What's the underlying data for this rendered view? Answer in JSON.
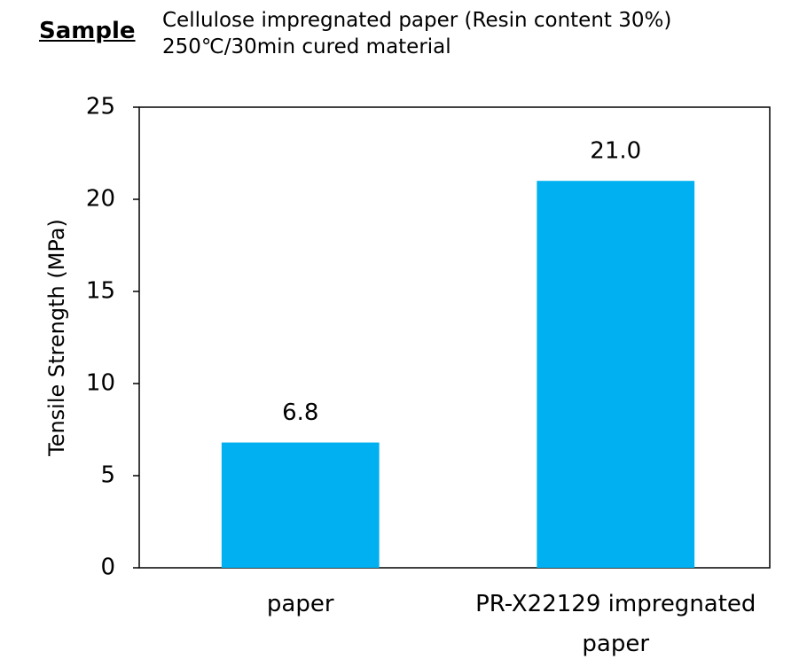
{
  "header": {
    "label": "Sample",
    "lines": [
      "Cellulose impregnated paper (Resin content 30%)",
      "250℃/30min cured material"
    ]
  },
  "chart_data": {
    "type": "bar",
    "ylabel": "Tensile Strength (MPa)",
    "categories": [
      "paper",
      "PR-X22129 impregnated paper"
    ],
    "values": [
      6.8,
      21.0
    ],
    "value_labels": [
      "6.8",
      "21.0"
    ],
    "color": "#00b0f0",
    "ylim": [
      0,
      25
    ],
    "yticks": [
      0,
      5,
      10,
      15,
      20,
      25
    ],
    "grid": false
  }
}
